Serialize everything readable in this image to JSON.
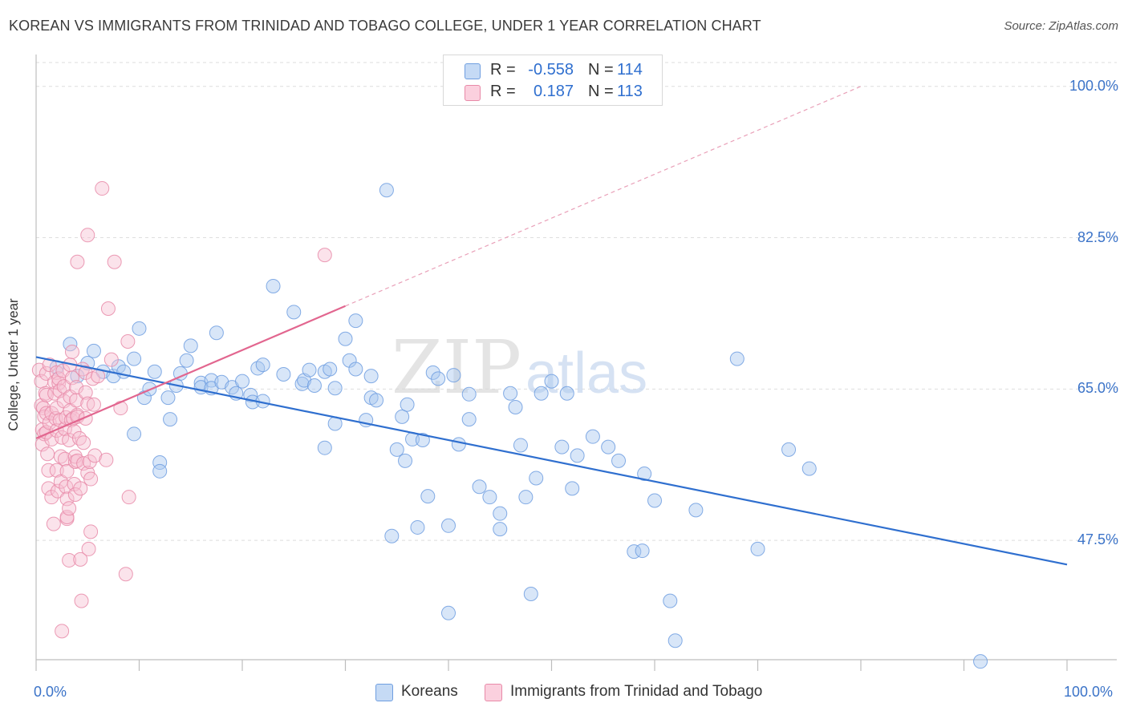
{
  "title": "KOREAN VS IMMIGRANTS FROM TRINIDAD AND TOBAGO COLLEGE, UNDER 1 YEAR CORRELATION CHART",
  "source": "Source: ZipAtlas.com",
  "watermark": {
    "zip": "ZIP",
    "atlas": "atlas"
  },
  "stats": [
    {
      "r_label": "R =",
      "r_value": "-0.558",
      "n_label": "N =",
      "n_value": "114",
      "color": "#a9c8f0",
      "border": "#6f9ee0"
    },
    {
      "r_label": "R =",
      "r_value": "0.187",
      "n_label": "N =",
      "n_value": "113",
      "color": "#f7b8cc",
      "border": "#e88aa8"
    }
  ],
  "legend": [
    {
      "label": "Koreans",
      "color": "#a9c8f0",
      "border": "#6f9ee0"
    },
    {
      "label": "Immigrants from Trinidad and Tobago",
      "color": "#f7c2d2",
      "border": "#e88aa8"
    }
  ],
  "axis": {
    "ylabel": "College, Under 1 year",
    "x_min_label": "0.0%",
    "x_max_label": "100.0%",
    "y_tick_labels": [
      "100.0%",
      "82.5%",
      "65.0%",
      "47.5%"
    ]
  },
  "chart_data": {
    "type": "scatter",
    "title": "KOREAN VS IMMIGRANTS FROM TRINIDAD AND TOBAGO COLLEGE, UNDER 1 YEAR CORRELATION CHART",
    "xlabel": "",
    "ylabel": "College, Under 1 year",
    "xlim": [
      0,
      100
    ],
    "ylim": [
      33.7,
      103.5
    ],
    "y_ticks": [
      47.5,
      65.0,
      82.5,
      100.0
    ],
    "grid": true,
    "legend_position": "bottom",
    "series": [
      {
        "name": "Koreans",
        "color": "#6f9ee0",
        "fill": "#a9c8f0",
        "trend": {
          "x": [
            0,
            100
          ],
          "y": [
            68.7,
            44.7
          ]
        },
        "points": [
          [
            2,
            67.5
          ],
          [
            3.3,
            70.2
          ],
          [
            4,
            66.5
          ],
          [
            5,
            68
          ],
          [
            5.6,
            69.4
          ],
          [
            6.5,
            67
          ],
          [
            7.5,
            66.5
          ],
          [
            8,
            67.6
          ],
          [
            8.5,
            67
          ],
          [
            9.5,
            68.5
          ],
          [
            9.5,
            59.8
          ],
          [
            10,
            72
          ],
          [
            10.5,
            64
          ],
          [
            11,
            65
          ],
          [
            11.5,
            67
          ],
          [
            12,
            56.5
          ],
          [
            12,
            55.5
          ],
          [
            12.8,
            64
          ],
          [
            13,
            61.5
          ],
          [
            13.6,
            65.4
          ],
          [
            14,
            66.8
          ],
          [
            14.6,
            68.3
          ],
          [
            15,
            70
          ],
          [
            16,
            65.7
          ],
          [
            16,
            65.2
          ],
          [
            17,
            66
          ],
          [
            17,
            65.1
          ],
          [
            17.5,
            71.5
          ],
          [
            18,
            65.8
          ],
          [
            19,
            65.2
          ],
          [
            19.4,
            64.5
          ],
          [
            20,
            65.9
          ],
          [
            20.8,
            64.3
          ],
          [
            21,
            63.5
          ],
          [
            21.5,
            67.4
          ],
          [
            22,
            67.8
          ],
          [
            22,
            63.6
          ],
          [
            23,
            76.9
          ],
          [
            24,
            66.7
          ],
          [
            25,
            73.9
          ],
          [
            25.8,
            65.6
          ],
          [
            26,
            66
          ],
          [
            26.5,
            67.2
          ],
          [
            27,
            65.4
          ],
          [
            28,
            67
          ],
          [
            28.5,
            67.3
          ],
          [
            28,
            58.2
          ],
          [
            29,
            61
          ],
          [
            29,
            65.1
          ],
          [
            30,
            70.8
          ],
          [
            30.4,
            68.3
          ],
          [
            31,
            72.9
          ],
          [
            31,
            67.3
          ],
          [
            32,
            61.4
          ],
          [
            32.5,
            64
          ],
          [
            32.5,
            66.5
          ],
          [
            33,
            63.7
          ],
          [
            34,
            88
          ],
          [
            34.5,
            48
          ],
          [
            35,
            58
          ],
          [
            35.5,
            61.8
          ],
          [
            35.8,
            56.7
          ],
          [
            36,
            63.2
          ],
          [
            36.5,
            59.2
          ],
          [
            37,
            49
          ],
          [
            37.5,
            59.1
          ],
          [
            38,
            52.6
          ],
          [
            38.5,
            66.9
          ],
          [
            39,
            66.2
          ],
          [
            40,
            39.1
          ],
          [
            40,
            49.2
          ],
          [
            40.5,
            66.6
          ],
          [
            41,
            58.6
          ],
          [
            42,
            64.4
          ],
          [
            42,
            61.5
          ],
          [
            43,
            53.7
          ],
          [
            44,
            52.5
          ],
          [
            45,
            50.6
          ],
          [
            45,
            48.8
          ],
          [
            46,
            64.5
          ],
          [
            46.5,
            62.9
          ],
          [
            47,
            58.5
          ],
          [
            47.5,
            52.5
          ],
          [
            48,
            41.3
          ],
          [
            48.5,
            54.7
          ],
          [
            49,
            64.5
          ],
          [
            50,
            65.9
          ],
          [
            51,
            58.3
          ],
          [
            51.5,
            64.5
          ],
          [
            52,
            53.5
          ],
          [
            52.5,
            57.3
          ],
          [
            54,
            59.5
          ],
          [
            55.5,
            58.3
          ],
          [
            56.5,
            56.7
          ],
          [
            58,
            46.2
          ],
          [
            58.8,
            46.3
          ],
          [
            59,
            55.2
          ],
          [
            60,
            52.1
          ],
          [
            61.5,
            40.5
          ],
          [
            62,
            35.9
          ],
          [
            64,
            51
          ],
          [
            68,
            68.5
          ],
          [
            70,
            46.5
          ],
          [
            73,
            58
          ],
          [
            75,
            55.8
          ],
          [
            91.6,
            33.5
          ]
        ]
      },
      {
        "name": "Immigrants from Trinidad and Tobago",
        "color": "#e88aa8",
        "fill": "#f7c2d2",
        "trend": {
          "x": [
            0,
            30
          ],
          "y": [
            59.3,
            74.6
          ]
        },
        "trend_extension": {
          "x": [
            30,
            80
          ],
          "y": [
            74.6,
            100.0
          ]
        },
        "points": [
          [
            0.3,
            67.2
          ],
          [
            0.5,
            65.9
          ],
          [
            0.5,
            63.1
          ],
          [
            0.6,
            60.3
          ],
          [
            0.6,
            58.6
          ],
          [
            0.7,
            62.8
          ],
          [
            0.8,
            61.8
          ],
          [
            0.8,
            59.8
          ],
          [
            0.9,
            64.5
          ],
          [
            1,
            66.8
          ],
          [
            1,
            64.3
          ],
          [
            1,
            62.2
          ],
          [
            1,
            60
          ],
          [
            1.1,
            57.5
          ],
          [
            1.2,
            53.5
          ],
          [
            1.2,
            55.6
          ],
          [
            1.3,
            67.8
          ],
          [
            1.3,
            61.1
          ],
          [
            1.5,
            62.2
          ],
          [
            1.5,
            59.2
          ],
          [
            1.5,
            52.5
          ],
          [
            1.7,
            49.4
          ],
          [
            1.8,
            64.5
          ],
          [
            1.8,
            65.8
          ],
          [
            1.9,
            61.6
          ],
          [
            2,
            66.9
          ],
          [
            2,
            60.2
          ],
          [
            2,
            62.8
          ],
          [
            2,
            55.6
          ],
          [
            2.1,
            53.2
          ],
          [
            2.2,
            65.7
          ],
          [
            2.2,
            66.2
          ],
          [
            2.3,
            64.8
          ],
          [
            2.3,
            61.4
          ],
          [
            2.4,
            57.2
          ],
          [
            2.4,
            54.3
          ],
          [
            2.5,
            59.4
          ],
          [
            2.5,
            37
          ],
          [
            2.6,
            67.1
          ],
          [
            2.7,
            63.6
          ],
          [
            2.7,
            65.3
          ],
          [
            2.8,
            60.4
          ],
          [
            2.8,
            56.9
          ],
          [
            2.9,
            61.7
          ],
          [
            2.9,
            53.7
          ],
          [
            3,
            50
          ],
          [
            3,
            52.3
          ],
          [
            3,
            55.5
          ],
          [
            3,
            50.2
          ],
          [
            3.2,
            59.1
          ],
          [
            3.2,
            51.2
          ],
          [
            3.2,
            45.2
          ],
          [
            3.3,
            62.5
          ],
          [
            3.3,
            64.1
          ],
          [
            3.3,
            67.8
          ],
          [
            3.4,
            61.4
          ],
          [
            3.5,
            66.3
          ],
          [
            3.5,
            69.3
          ],
          [
            3.6,
            61.6
          ],
          [
            3.7,
            60.1
          ],
          [
            3.7,
            54
          ],
          [
            3.8,
            56.6
          ],
          [
            3.8,
            57.2
          ],
          [
            3.8,
            52.8
          ],
          [
            3.9,
            63.7
          ],
          [
            3.9,
            65.2
          ],
          [
            4,
            79.7
          ],
          [
            4,
            62
          ],
          [
            4,
            61.8
          ],
          [
            4,
            56.7
          ],
          [
            4.2,
            59.3
          ],
          [
            4.3,
            53.5
          ],
          [
            4.3,
            45.3
          ],
          [
            4.4,
            40.5
          ],
          [
            4.5,
            67.3
          ],
          [
            4.6,
            58.8
          ],
          [
            4.6,
            56.4
          ],
          [
            4.8,
            66.9
          ],
          [
            4.8,
            64.6
          ],
          [
            4.8,
            61.6
          ],
          [
            5,
            82.8
          ],
          [
            5,
            63.3
          ],
          [
            5,
            55.3
          ],
          [
            5.1,
            46.5
          ],
          [
            5.2,
            56.6
          ],
          [
            5.3,
            54.6
          ],
          [
            5.3,
            48.5
          ],
          [
            5.5,
            66.2
          ],
          [
            5.6,
            63.2
          ],
          [
            5.7,
            57.3
          ],
          [
            6,
            66.5
          ],
          [
            6.4,
            88.2
          ],
          [
            6.8,
            56.8
          ],
          [
            7,
            74.3
          ],
          [
            7.3,
            68.4
          ],
          [
            7.6,
            79.7
          ],
          [
            8.2,
            62.8
          ],
          [
            8.7,
            43.6
          ],
          [
            8.9,
            70.5
          ],
          [
            9,
            52.5
          ],
          [
            28,
            80.5
          ]
        ]
      }
    ]
  }
}
